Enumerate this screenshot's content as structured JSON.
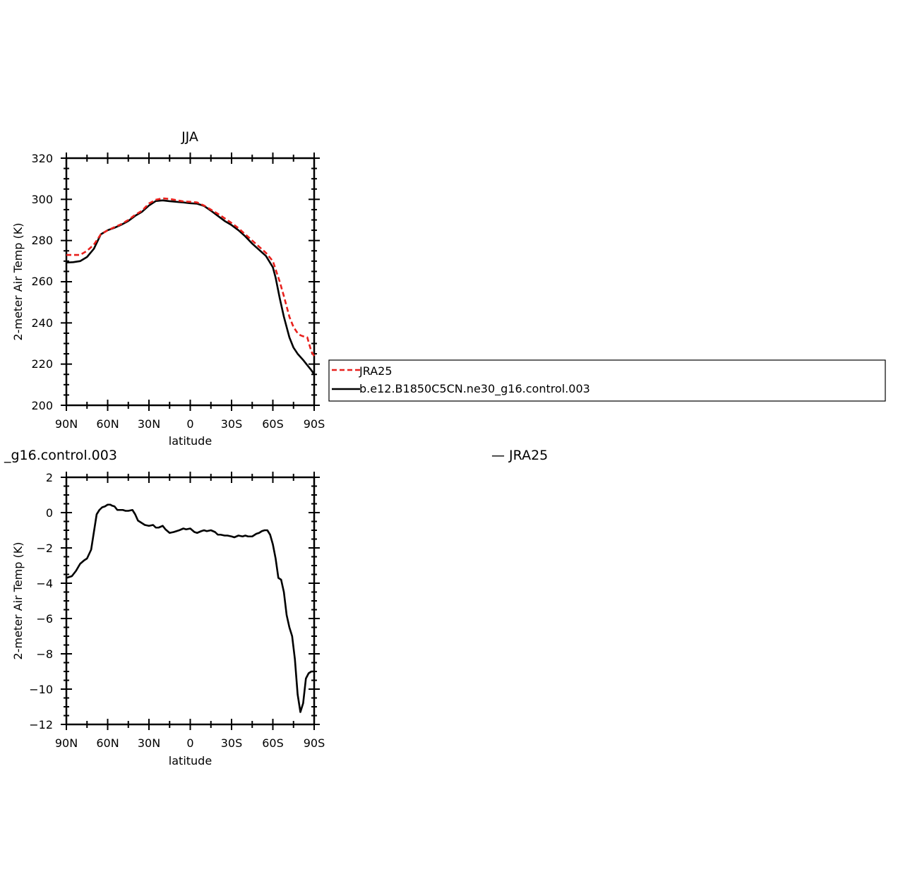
{
  "chart_data": [
    {
      "type": "line",
      "title": "JJA",
      "xlabel": "latitude",
      "ylabel": "2-meter Air Temp (K)",
      "xlim": [
        90,
        -90
      ],
      "ylim": [
        200,
        320
      ],
      "xticks": [
        90,
        60,
        30,
        0,
        -30,
        -60,
        -90
      ],
      "xtick_labels": [
        "90N",
        "60N",
        "30N",
        "0",
        "30S",
        "60S",
        "90S"
      ],
      "yticks": [
        200,
        220,
        240,
        260,
        280,
        300,
        320
      ],
      "ytick_labels": [
        "200",
        "220",
        "240",
        "260",
        "280",
        "300",
        "320"
      ],
      "legend_position": "right",
      "series": [
        {
          "name": "JRA25",
          "color": "#e8201c",
          "dash": "dashed",
          "x": [
            90,
            85,
            80,
            75,
            70,
            65,
            60,
            55,
            50,
            45,
            40,
            35,
            30,
            25,
            20,
            15,
            10,
            5,
            0,
            -5,
            -10,
            -15,
            -20,
            -25,
            -30,
            -35,
            -40,
            -45,
            -50,
            -55,
            -60,
            -62,
            -65,
            -68,
            -70,
            -72,
            -75,
            -78,
            -80,
            -82,
            -85,
            -88,
            -90
          ],
          "y": [
            273,
            273,
            273,
            275,
            278,
            283,
            285,
            286.5,
            288,
            290,
            292.5,
            294.5,
            298,
            299.8,
            300.5,
            300.2,
            299.6,
            299,
            298.8,
            298.5,
            297,
            295,
            293,
            290.8,
            288.5,
            286,
            283,
            280,
            277,
            274,
            270,
            266,
            260,
            253,
            248,
            243,
            238,
            235,
            234,
            233.5,
            233,
            226,
            224
          ]
        },
        {
          "name": "b.e12.B1850C5CN.ne30_g16.control.003",
          "color": "#000000",
          "dash": "solid",
          "x": [
            90,
            85,
            80,
            75,
            70,
            65,
            60,
            55,
            50,
            45,
            40,
            35,
            30,
            25,
            20,
            15,
            10,
            5,
            0,
            -5,
            -10,
            -15,
            -20,
            -25,
            -30,
            -35,
            -40,
            -45,
            -50,
            -55,
            -60,
            -62,
            -65,
            -68,
            -70,
            -72,
            -75,
            -78,
            -80,
            -82,
            -85,
            -88,
            -90
          ],
          "y": [
            269.3,
            269.5,
            270,
            272,
            276,
            283,
            285,
            286.2,
            287.7,
            289.5,
            292,
            294,
            297,
            299.2,
            299.5,
            299.1,
            298.8,
            298.5,
            298.1,
            297.9,
            296.8,
            294.5,
            292,
            289.5,
            287.5,
            285,
            282,
            278.5,
            275.5,
            272.5,
            267,
            262,
            252,
            243,
            238,
            233,
            228,
            225,
            223.5,
            222,
            219.5,
            217,
            215
          ]
        }
      ]
    },
    {
      "type": "line",
      "title": "",
      "xlabel": "latitude",
      "ylabel": "2-meter Air Temp (K)",
      "title_left": "_g16.control.003",
      "title_right": "— JRA25",
      "xlim": [
        90,
        -90
      ],
      "ylim": [
        -12,
        2
      ],
      "xticks": [
        90,
        60,
        30,
        0,
        -30,
        -60,
        -90
      ],
      "xtick_labels": [
        "90N",
        "60N",
        "30N",
        "0",
        "30S",
        "60S",
        "90S"
      ],
      "yticks": [
        -12,
        -10,
        -8,
        -6,
        -4,
        -2,
        0,
        2
      ],
      "ytick_labels": [
        "−12",
        "−10",
        "−8",
        "−6",
        "−4",
        "−2",
        "0",
        "2"
      ],
      "series": [
        {
          "color": "#000000",
          "dash": "solid",
          "x": [
            90,
            86,
            83,
            80,
            77,
            75,
            72,
            70,
            68,
            66,
            64,
            62,
            60,
            58,
            57,
            55,
            53,
            51,
            49,
            47,
            45,
            42,
            40,
            38,
            35,
            33,
            30,
            27,
            25,
            23,
            20,
            18,
            15,
            12,
            10,
            8,
            5,
            3,
            0,
            -3,
            -5,
            -8,
            -10,
            -12,
            -15,
            -18,
            -20,
            -22,
            -25,
            -27,
            -30,
            -32,
            -35,
            -38,
            -40,
            -42,
            -45,
            -48,
            -50,
            -52,
            -54,
            -56,
            -58,
            -60,
            -62,
            -64,
            -66,
            -68,
            -70,
            -72,
            -74,
            -76,
            -78,
            -80,
            -82,
            -84,
            -86,
            -88,
            -90
          ],
          "y": [
            -3.7,
            -3.6,
            -3.3,
            -2.9,
            -2.7,
            -2.6,
            -2.1,
            -1.1,
            -0.1,
            0.15,
            0.3,
            0.35,
            0.45,
            0.45,
            0.4,
            0.35,
            0.15,
            0.15,
            0.15,
            0.1,
            0.1,
            0.15,
            -0.1,
            -0.45,
            -0.6,
            -0.7,
            -0.75,
            -0.7,
            -0.85,
            -0.85,
            -0.75,
            -0.95,
            -1.15,
            -1.1,
            -1.05,
            -1.0,
            -0.9,
            -0.95,
            -0.9,
            -1.1,
            -1.15,
            -1.05,
            -1.0,
            -1.05,
            -1.0,
            -1.1,
            -1.25,
            -1.25,
            -1.3,
            -1.3,
            -1.35,
            -1.4,
            -1.3,
            -1.35,
            -1.3,
            -1.35,
            -1.35,
            -1.2,
            -1.15,
            -1.05,
            -1.0,
            -1.0,
            -1.25,
            -1.8,
            -2.6,
            -3.7,
            -3.8,
            -4.5,
            -5.8,
            -6.5,
            -7.0,
            -8.3,
            -10.3,
            -11.3,
            -10.8,
            -9.4,
            -9.1,
            -9.0,
            -9.0
          ]
        }
      ]
    }
  ]
}
